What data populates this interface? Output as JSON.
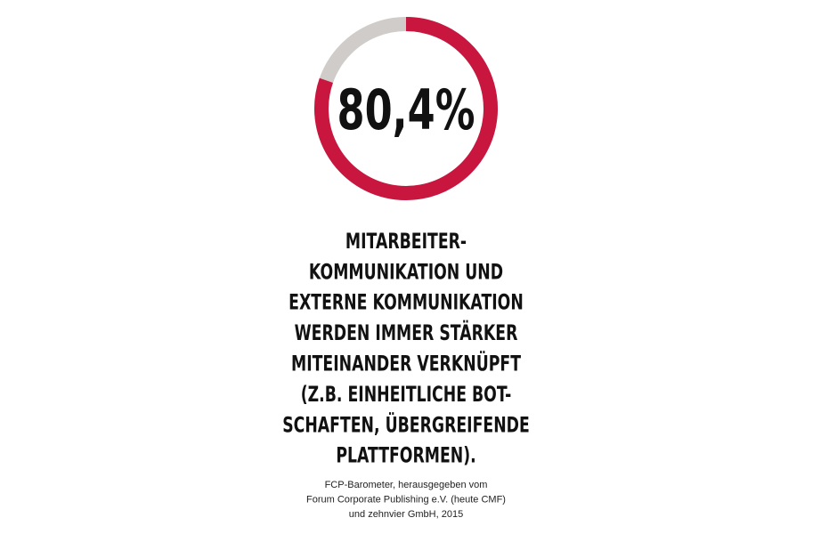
{
  "chart_data": {
    "type": "donut",
    "values": [
      80.4
    ],
    "value_labels": [
      "80,4%"
    ],
    "color": "#c8163f",
    "track_color": "#cfccc9",
    "description_lines": [
      "MITARBEITER-",
      "KOMMUNIKATION UND",
      "EXTERNE KOMMUNIKATION",
      "WERDEN IMMER STÄRKER",
      "MITEINANDER VERKNÜPFT",
      "(Z.B. EINHEITLICHE BOT-",
      "SCHAFTEN, ÜBERGREIFENDE",
      "PLATTFORMEN)."
    ],
    "source_lines": [
      "FCP-Barometer, herausgegeben vom",
      "Forum Corporate Publishing e.V. (heute CMF)",
      "und zehnvier GmbH, 2015"
    ]
  }
}
